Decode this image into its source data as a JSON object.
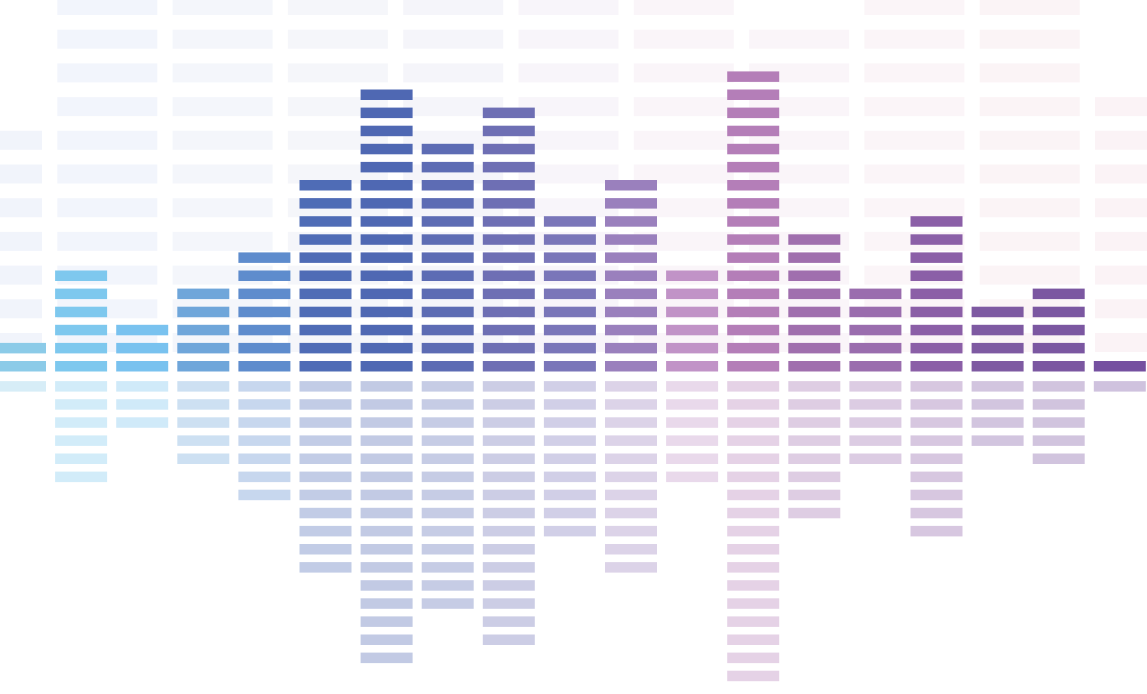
{
  "equalizer": {
    "description_free": true,
    "main_columns": [
      {
        "level": 2,
        "reflection": 1,
        "color": "#8ccbe8"
      },
      {
        "level": 6,
        "reflection": 6,
        "color": "#7ec8ee"
      },
      {
        "level": 3,
        "reflection": 3,
        "color": "#79c2ef"
      },
      {
        "level": 5,
        "reflection": 5,
        "color": "#6fa6da"
      },
      {
        "level": 7,
        "reflection": 7,
        "color": "#5e8ccd"
      },
      {
        "level": 11,
        "reflection": 11,
        "color": "#4f6cb6"
      },
      {
        "level": 16,
        "reflection": 16,
        "color": "#4f68b3"
      },
      {
        "level": 13,
        "reflection": 13,
        "color": "#5d6cb4"
      },
      {
        "level": 15,
        "reflection": 15,
        "color": "#6e6fb4"
      },
      {
        "level": 9,
        "reflection": 9,
        "color": "#7a76b9"
      },
      {
        "level": 11,
        "reflection": 11,
        "color": "#9a80bd"
      },
      {
        "level": 6,
        "reflection": 6,
        "color": "#c193c7"
      },
      {
        "level": 17,
        "reflection": 17,
        "color": "#b47eb8"
      },
      {
        "level": 8,
        "reflection": 8,
        "color": "#a06fae"
      },
      {
        "level": 5,
        "reflection": 5,
        "color": "#9a6dae"
      },
      {
        "level": 9,
        "reflection": 9,
        "color": "#8b5fa7"
      },
      {
        "level": 4,
        "reflection": 4,
        "color": "#7e5aa2"
      },
      {
        "level": 5,
        "reflection": 5,
        "color": "#7b57a1"
      },
      {
        "level": 1,
        "reflection": 1,
        "color": "#7550a0"
      }
    ],
    "background_columns": [
      {
        "level": 7,
        "color": "#dfe6f7"
      },
      {
        "level": 16,
        "color": "#e3e9f8"
      },
      {
        "level": 16,
        "color": "#e6eaf6"
      },
      {
        "level": 16,
        "color": "#e8eaf5"
      },
      {
        "level": 16,
        "color": "#e9e9f5"
      },
      {
        "level": 15,
        "color": "#efe9f4"
      },
      {
        "level": 16,
        "color": "#f4e9f2"
      },
      {
        "level": 10,
        "color": "#f4e9f2"
      },
      {
        "level": 16,
        "color": "#f6e8ef"
      },
      {
        "level": 13,
        "color": "#f6e6ec"
      },
      {
        "level": 8,
        "color": "#f6e5ea"
      }
    ]
  }
}
